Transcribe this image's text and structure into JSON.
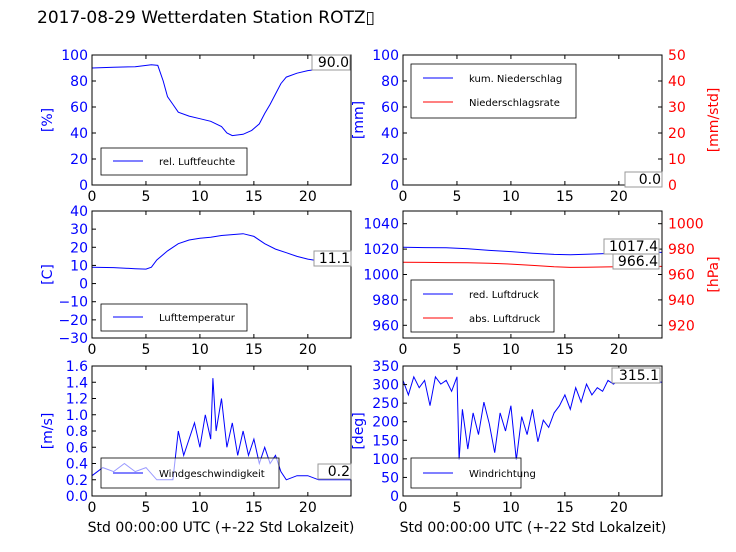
{
  "page_title": "2017-08-29 Wetterdaten Station ROTZ▯",
  "xlabel": "Std 00:00:00 UTC (+-22 Std Lokalzeit)",
  "colors": {
    "blue": "#0000ff",
    "red": "#ff0000"
  },
  "chart_data": [
    {
      "id": "humidity",
      "type": "line",
      "ylabel": "[%]",
      "xlim": [
        0,
        24
      ],
      "ylim": [
        0,
        100
      ],
      "xticks": [
        "0",
        "5",
        "10",
        "15",
        "20"
      ],
      "yticks": [
        "0",
        "20",
        "40",
        "60",
        "80",
        "100"
      ],
      "legend": [
        "rel. Luftfeuchte"
      ],
      "legend_position": "lower-left",
      "current_value": "90.0",
      "series": [
        {
          "name": "rel. Luftfeuchte",
          "color": "#0000ff",
          "x": [
            0,
            2,
            4,
            5.5,
            6.1,
            6.6,
            7.0,
            7.5,
            8.0,
            9,
            10,
            11,
            12,
            12.5,
            13,
            14,
            14.8,
            15.5,
            16,
            16.5,
            17,
            17.5,
            18,
            19,
            20,
            21,
            22,
            23,
            24
          ],
          "y": [
            90,
            90.5,
            91,
            92.5,
            92,
            80,
            68,
            62,
            56,
            53,
            51,
            49,
            45,
            40,
            38,
            39,
            42,
            47,
            55,
            62,
            70,
            78,
            83,
            86,
            88,
            89,
            89.5,
            90,
            90
          ]
        }
      ]
    },
    {
      "id": "precipitation",
      "type": "line",
      "ylabel": "[mm]",
      "ylabel_right": "[mm/std]",
      "xlim": [
        0,
        24
      ],
      "ylim": [
        0,
        100
      ],
      "ylim_right": [
        0,
        50
      ],
      "xticks": [
        "0",
        "5",
        "10",
        "15",
        "20"
      ],
      "yticks": [
        "0",
        "20",
        "40",
        "60",
        "80",
        "100"
      ],
      "yticks_right": [
        "0",
        "10",
        "20",
        "30",
        "40",
        "50"
      ],
      "legend": [
        "kum. Niederschlag",
        "Niederschlagsrate"
      ],
      "legend_position": "upper-left",
      "current_values": [
        "0.0",
        "0.0"
      ],
      "series": [
        {
          "name": "kum. Niederschlag",
          "color": "#0000ff",
          "x": [
            0,
            24
          ],
          "y": [
            0,
            0
          ]
        },
        {
          "name": "Niederschlagsrate",
          "color": "#ff0000",
          "x": [
            0,
            24
          ],
          "y": [
            0,
            0
          ]
        }
      ]
    },
    {
      "id": "temperature",
      "type": "line",
      "ylabel": "[C]",
      "xlim": [
        0,
        24
      ],
      "ylim": [
        -30,
        40
      ],
      "xticks": [
        "0",
        "5",
        "10",
        "15",
        "20"
      ],
      "yticks": [
        "−30",
        "−20",
        "−10",
        "0",
        "10",
        "20",
        "30",
        "40"
      ],
      "legend": [
        "Lufttemperatur"
      ],
      "legend_position": "lower-left",
      "current_value": "11.1",
      "series": [
        {
          "name": "Lufttemperatur",
          "color": "#0000ff",
          "x": [
            0,
            2,
            4,
            5,
            5.5,
            6,
            7,
            8,
            9,
            10,
            11,
            12,
            13,
            14,
            15,
            16,
            17,
            18,
            19,
            20,
            21,
            22,
            23,
            24
          ],
          "y": [
            9,
            8.8,
            8.2,
            8,
            9,
            13,
            18,
            22,
            24,
            25,
            25.5,
            26.5,
            27,
            27.5,
            26,
            22,
            19,
            17,
            15,
            13.5,
            12.5,
            11.8,
            11.3,
            11.1
          ]
        }
      ]
    },
    {
      "id": "pressure",
      "type": "line",
      "ylabel_right": "[hPa]",
      "xlim": [
        0,
        24
      ],
      "ylim": [
        950,
        1050
      ],
      "ylim_right": [
        910,
        1010
      ],
      "xticks": [
        "0",
        "5",
        "10",
        "15",
        "20"
      ],
      "yticks": [
        "960",
        "980",
        "1000",
        "1020",
        "1040"
      ],
      "yticks_right": [
        "920",
        "940",
        "960",
        "980",
        "1000"
      ],
      "legend": [
        "red. Luftdruck",
        "abs. Luftdruck"
      ],
      "legend_position": "lower-left",
      "current_values": [
        "1017.4",
        "966.4"
      ],
      "series": [
        {
          "name": "red. Luftdruck",
          "color": "#0000ff",
          "x": [
            0,
            2,
            4,
            6,
            8,
            10,
            12,
            14,
            15.5,
            17,
            19,
            21,
            22.5,
            24
          ],
          "y": [
            1021.5,
            1021.2,
            1021,
            1020.2,
            1019,
            1018,
            1016.8,
            1015.8,
            1015.5,
            1016,
            1016.5,
            1017,
            1017.3,
            1017.4
          ]
        },
        {
          "name": "abs. Luftdruck",
          "color": "#ff0000",
          "x": [
            0,
            2,
            4,
            6,
            8,
            10,
            12,
            14,
            15.5,
            17,
            19,
            21,
            22.5,
            24
          ],
          "y": [
            969.6,
            969.5,
            969.4,
            969.2,
            968.8,
            968.2,
            967.2,
            966.1,
            965.6,
            965.7,
            966,
            966.2,
            966.3,
            966.4
          ]
        }
      ]
    },
    {
      "id": "windspeed",
      "type": "line",
      "ylabel": "[m/s]",
      "xlim": [
        0,
        24
      ],
      "ylim": [
        0,
        1.6
      ],
      "xticks": [
        "0",
        "5",
        "10",
        "15",
        "20"
      ],
      "yticks": [
        "0.0",
        "0.2",
        "0.4",
        "0.6",
        "0.8",
        "1.0",
        "1.2",
        "1.4",
        "1.6"
      ],
      "legend": [
        "Windgeschwindigkeit"
      ],
      "legend_position": "lower-left",
      "current_value": "0.2",
      "series": [
        {
          "name": "Windgeschwindigkeit",
          "color": "#0000ff",
          "x": [
            0,
            1,
            2,
            3,
            4,
            5,
            6,
            7,
            7.5,
            8,
            8.5,
            9,
            9.5,
            10,
            10.5,
            11,
            11.2,
            11.5,
            12,
            12.5,
            13,
            13.5,
            14,
            14.5,
            15,
            15.5,
            16,
            16.5,
            17,
            17.5,
            18,
            19,
            20,
            21,
            22,
            23,
            24
          ],
          "y": [
            0.25,
            0.35,
            0.3,
            0.4,
            0.3,
            0.35,
            0.2,
            0.2,
            0.2,
            0.8,
            0.5,
            0.7,
            0.9,
            0.6,
            1.0,
            0.7,
            1.45,
            0.8,
            1.2,
            0.6,
            0.9,
            0.5,
            0.8,
            0.5,
            0.7,
            0.4,
            0.6,
            0.4,
            0.5,
            0.3,
            0.2,
            0.25,
            0.25,
            0.2,
            0.2,
            0.2,
            0.2
          ]
        }
      ]
    },
    {
      "id": "winddirection",
      "type": "line",
      "ylabel": "[deg]",
      "xlim": [
        0,
        24
      ],
      "ylim": [
        0,
        360
      ],
      "xticks": [
        "0",
        "5",
        "10",
        "15",
        "20"
      ],
      "yticks": [
        "0",
        "50",
        "100",
        "150",
        "200",
        "250",
        "300",
        "350"
      ],
      "legend": [
        "Windrichtung"
      ],
      "legend_position": "lower-left",
      "current_value": "315.1",
      "series": [
        {
          "name": "Windrichtung",
          "color": "#0000ff",
          "x": [
            0,
            0.5,
            1,
            1.5,
            2,
            2.5,
            3,
            3.5,
            4,
            4.5,
            5,
            5.2,
            5.5,
            6,
            6.5,
            7,
            7.5,
            8,
            8.5,
            9,
            9.5,
            10,
            10.5,
            11,
            11.5,
            12,
            12.5,
            13,
            13.5,
            14,
            14.5,
            15,
            15.5,
            16,
            16.5,
            17,
            17.5,
            18,
            18.5,
            19,
            19.5,
            20,
            21,
            22,
            23,
            24
          ],
          "y": [
            320,
            280,
            330,
            300,
            320,
            250,
            330,
            310,
            320,
            290,
            330,
            100,
            240,
            130,
            230,
            170,
            260,
            200,
            120,
            230,
            180,
            250,
            100,
            220,
            170,
            240,
            150,
            210,
            190,
            230,
            250,
            280,
            240,
            300,
            260,
            310,
            280,
            300,
            290,
            320,
            310,
            320,
            325,
            320,
            318,
            315
          ]
        }
      ]
    }
  ]
}
